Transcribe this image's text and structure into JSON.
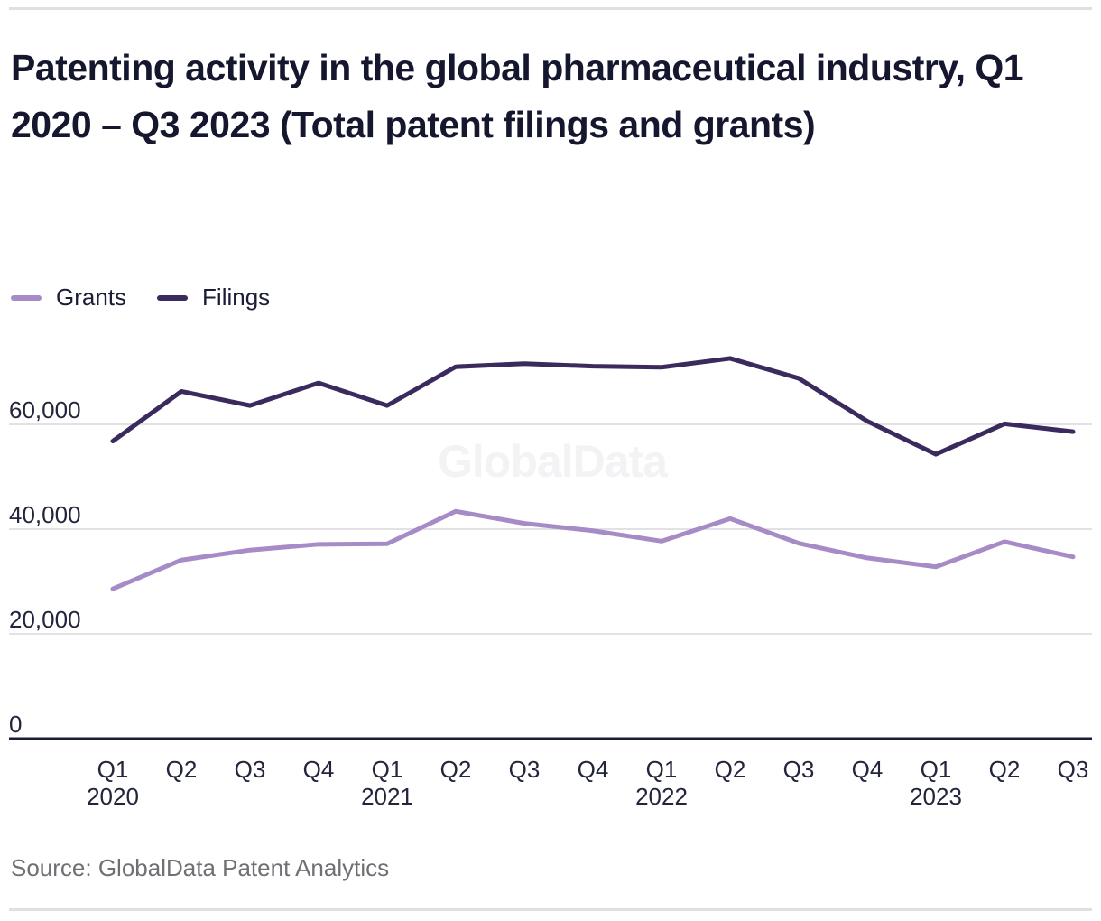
{
  "header": {
    "title": "Patenting activity in the global pharmaceutical industry, Q1 2020 – Q3 2023 (Total patent filings and grants)"
  },
  "legend": {
    "items": [
      {
        "label": "Grants",
        "color": "#a78bc7"
      },
      {
        "label": "Filings",
        "color": "#3a2a5e"
      }
    ]
  },
  "footer": {
    "source": "Source: GlobalData Patent Analytics"
  },
  "colors": {
    "grants_line": "#a78bc7",
    "filings_line": "#3a2a5e",
    "title_text": "#15172f",
    "tick_text": "#23253c",
    "gridline": "#d9d9dd",
    "axis_line": "#1a1c33",
    "watermark": "#f3f3f5",
    "source_text": "#6f6f74",
    "divider": "#e0e0e4"
  },
  "chart_data": {
    "type": "line",
    "title": "Patenting activity in the global pharmaceutical industry, Q1 2020 – Q3 2023 (Total patent filings and grants)",
    "categories": [
      "Q1 2020",
      "Q2 2020",
      "Q3 2020",
      "Q4 2020",
      "Q1 2021",
      "Q2 2021",
      "Q3 2021",
      "Q4 2021",
      "Q1 2022",
      "Q2 2022",
      "Q3 2022",
      "Q4 2022",
      "Q1 2023",
      "Q2 2023",
      "Q3 2023"
    ],
    "series": [
      {
        "name": "Grants",
        "color": "#a78bc7",
        "values": [
          28600,
          34100,
          36000,
          37100,
          37200,
          43400,
          41100,
          39700,
          37700,
          42000,
          37300,
          34500,
          32800,
          37600,
          34700
        ]
      },
      {
        "name": "Filings",
        "color": "#3a2a5e",
        "values": [
          56800,
          66300,
          63600,
          67900,
          63600,
          71000,
          71600,
          71100,
          70900,
          72600,
          68800,
          60600,
          54300,
          60100,
          58600
        ]
      }
    ],
    "xlabel": "",
    "ylabel": "",
    "ylim": [
      0,
      80000
    ],
    "yticks": [
      0,
      20000,
      40000,
      60000
    ],
    "ytick_labels": [
      "0",
      "20,000",
      "40,000",
      "60,000"
    ],
    "grid": "horizontal",
    "legend_position": "top-left",
    "watermark": "GlobalData",
    "style": {
      "grid_color": "#d9d9dd",
      "axis_color": "#1a1c33",
      "tick_color": "#23253c",
      "watermark_color": "#f3f3f5"
    }
  }
}
